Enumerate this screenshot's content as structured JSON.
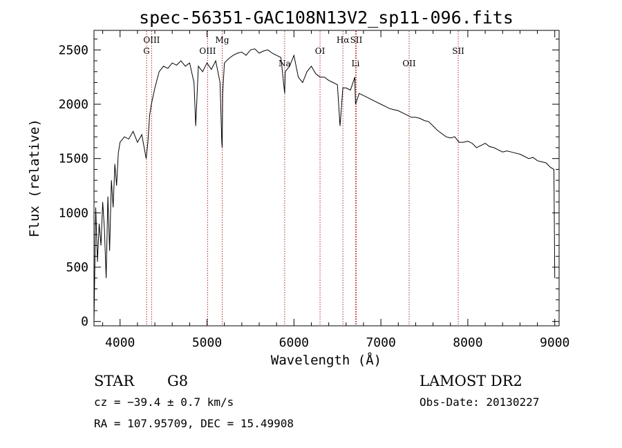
{
  "chart_data": {
    "type": "line",
    "title": "spec-56351-GAC108N13V2_sp11-096.fits",
    "xlabel": "Wavelength (Å)",
    "ylabel": "Flux (relative)",
    "xlim": [
      3700,
      9050
    ],
    "ylim": [
      -40,
      2680
    ],
    "xticks": [
      4000,
      5000,
      6000,
      7000,
      8000,
      9000
    ],
    "yticks": [
      0,
      500,
      1000,
      1500,
      2000,
      2500
    ],
    "grid": false,
    "line_color": "#000000",
    "marker_color": "#b22222",
    "spectral_lines": [
      {
        "label": "OIII",
        "wavelength": 4363,
        "row": 1
      },
      {
        "label": "G",
        "wavelength": 4305,
        "row": 2
      },
      {
        "label": "OIII",
        "wavelength": 5007,
        "row": 2
      },
      {
        "label": "Mg",
        "wavelength": 5175,
        "row": 1
      },
      {
        "label": "Na",
        "wavelength": 5893,
        "row": 3
      },
      {
        "label": "OI",
        "wavelength": 6300,
        "row": 2
      },
      {
        "label": "Hα",
        "wavelength": 6563,
        "row": 1
      },
      {
        "label": "SII",
        "wavelength": 6717,
        "row": 1
      },
      {
        "label": "Li",
        "wavelength": 6708,
        "row": 3
      },
      {
        "label": "OII",
        "wavelength": 7325,
        "row": 3
      },
      {
        "label": "SII",
        "wavelength": 7890,
        "row": 2
      }
    ],
    "series": [
      {
        "x": [
          3700,
          3720,
          3740,
          3760,
          3780,
          3800,
          3820,
          3840,
          3860,
          3880,
          3900,
          3920,
          3940,
          3960,
          3980,
          4000,
          4050,
          4100,
          4150,
          4200,
          4250,
          4300,
          4320,
          4340,
          4360,
          4400,
          4450,
          4500,
          4550,
          4600,
          4650,
          4700,
          4750,
          4800,
          4850,
          4870,
          4900,
          4950,
          5000,
          5050,
          5100,
          5150,
          5170,
          5175,
          5180,
          5200,
          5250,
          5300,
          5350,
          5400,
          5450,
          5500,
          5550,
          5600,
          5650,
          5700,
          5750,
          5800,
          5850,
          5893,
          5900,
          5950,
          6000,
          6050,
          6100,
          6150,
          6200,
          6250,
          6300,
          6350,
          6400,
          6450,
          6500,
          6530,
          6563,
          6600,
          6650,
          6700,
          6708,
          6750,
          6800,
          6850,
          6900,
          6950,
          7000,
          7050,
          7100,
          7150,
          7200,
          7250,
          7300,
          7350,
          7400,
          7450,
          7500,
          7550,
          7600,
          7650,
          7700,
          7750,
          7800,
          7850,
          7900,
          7950,
          8000,
          8050,
          8100,
          8150,
          8200,
          8250,
          8300,
          8350,
          8400,
          8450,
          8500,
          8550,
          8600,
          8650,
          8700,
          8750,
          8800,
          8850,
          8900,
          8950,
          8990,
          9000
        ],
        "y": [
          0,
          1050,
          550,
          900,
          700,
          1100,
          850,
          400,
          1150,
          650,
          1300,
          1050,
          1450,
          1250,
          1550,
          1650,
          1700,
          1680,
          1750,
          1650,
          1720,
          1500,
          1650,
          1900,
          2000,
          2150,
          2300,
          2350,
          2330,
          2380,
          2360,
          2400,
          2350,
          2380,
          2200,
          1800,
          2350,
          2300,
          2380,
          2320,
          2400,
          2200,
          1650,
          1600,
          2100,
          2380,
          2420,
          2450,
          2470,
          2480,
          2450,
          2500,
          2510,
          2470,
          2490,
          2500,
          2470,
          2450,
          2430,
          2100,
          2300,
          2350,
          2450,
          2250,
          2200,
          2300,
          2350,
          2280,
          2250,
          2250,
          2220,
          2200,
          2180,
          1800,
          2150,
          2150,
          2130,
          2250,
          2000,
          2100,
          2080,
          2060,
          2040,
          2020,
          2000,
          1980,
          1960,
          1950,
          1940,
          1920,
          1900,
          1880,
          1880,
          1870,
          1850,
          1840,
          1800,
          1760,
          1730,
          1700,
          1690,
          1700,
          1650,
          1650,
          1660,
          1640,
          1600,
          1620,
          1640,
          1610,
          1600,
          1580,
          1560,
          1570,
          1560,
          1550,
          1540,
          1520,
          1500,
          1510,
          1480,
          1470,
          1460,
          1420,
          1400,
          400
        ]
      }
    ]
  },
  "info": {
    "object_type": "STAR",
    "subclass": "G8",
    "survey": "LAMOST DR2",
    "cz": "cz = −39.4 ± 0.7 km/s",
    "obs_date": "Obs-Date: 20130227",
    "coords": "RA = 107.95709, DEC =  15.49908"
  }
}
